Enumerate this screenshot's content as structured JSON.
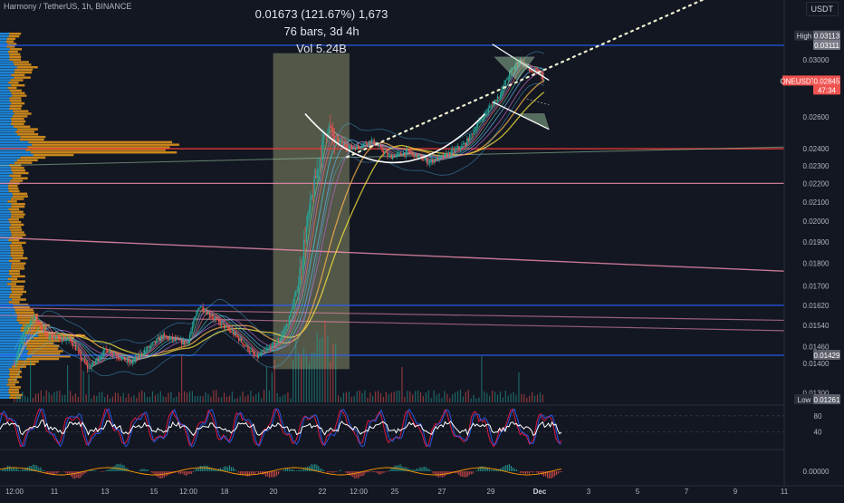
{
  "header": {
    "symbol_line": "Harmony / TetherUS, 1h, BINANCE",
    "unit": "USDT"
  },
  "measure": {
    "change": "0.01673 (121.67%) 1,673",
    "bars": "76 bars, 3d 4h",
    "volume": "Vol 5.24B"
  },
  "colors": {
    "background": "#131722",
    "up": "#26a69a",
    "down": "#ef5350",
    "volume_profile_blue": "#2196f3",
    "volume_profile_orange": "#f7a31c",
    "horizontal_red": "#e53935",
    "horizontal_blue": "#2962ff",
    "pink_line": "#f48fb1",
    "measure_box": "#c9cf8e",
    "dotted_projection": "#f0f0d0",
    "oscillator_white": "#ffffff",
    "oscillator_blue": "#2962ff",
    "oscillator_red": "#ff1744"
  },
  "chart_data": [
    {
      "type": "candlestick",
      "title": "Harmony / TetherUS, 1h, BINANCE",
      "xlabel": "",
      "ylabel": "",
      "x_ticks": [
        "12:00",
        "11",
        "13",
        "15",
        "12:00",
        "18",
        "20",
        "22",
        "12:00",
        "25",
        "27",
        "29",
        "Dec",
        "3",
        "5",
        "7",
        "9",
        "11"
      ],
      "y_ticks": [
        0.013,
        0.014,
        0.0146,
        0.0154,
        0.0162,
        0.017,
        0.018,
        0.019,
        0.02,
        0.021,
        0.022,
        0.023,
        0.024,
        0.026,
        0.03
      ],
      "y_tick_labels": [
        "0.01300",
        "0.01400",
        "0.01460",
        "0.01540",
        "0.01620",
        "0.01700",
        "0.01800",
        "0.01900",
        "0.02000",
        "0.02100",
        "0.02200",
        "0.02300",
        "0.02400",
        "0.02600",
        "0.03000"
      ],
      "ylim": [
        0.0128,
        0.0322
      ],
      "y_scale": "log",
      "price_labels": {
        "high_label": "High",
        "high_value": "0.03113",
        "high2_value": "0.03111",
        "current_symbol": "ONEUSDT",
        "current_value": "0.02845",
        "current_countdown": "47:34",
        "level_value": "0.01429",
        "low_label": "Low",
        "low_value": "0.01261"
      },
      "horizontal_levels": [
        {
          "value": 0.03111,
          "color": "blue"
        },
        {
          "value": 0.024,
          "color": "red"
        },
        {
          "value": 0.022,
          "color": "pink"
        },
        {
          "value": 0.0162,
          "color": "blue"
        },
        {
          "value": 0.01429,
          "color": "blue"
        }
      ],
      "segments": [
        {
          "from": "11 12:00",
          "to": "11 end",
          "values": [
            0.014,
            0.0155
          ]
        },
        {
          "from": "11",
          "to": "20",
          "values": [
            0.0145,
            0.0152
          ]
        },
        {
          "from": "20",
          "to": "21 12:00",
          "values": [
            0.0148,
            0.0152
          ]
        },
        {
          "from": "21 12:00",
          "to": "23",
          "values": [
            0.0152,
            0.027
          ]
        },
        {
          "from": "23",
          "to": "29",
          "values": [
            0.023,
            0.0245
          ]
        },
        {
          "from": "29",
          "to": "Dec 1",
          "values": [
            0.0245,
            0.0305
          ]
        }
      ],
      "legend": "none",
      "grid": false
    },
    {
      "type": "line",
      "title": "",
      "y_ticks": [
        40,
        80
      ],
      "y_tick_labels": [
        "40",
        "80"
      ],
      "ylim": [
        0,
        100
      ],
      "series": [
        {
          "values": []
        },
        {
          "values": []
        }
      ]
    },
    {
      "type": "bar",
      "title": "",
      "y_ticks": [
        0
      ],
      "y_tick_labels": [
        "0.00000"
      ]
    }
  ]
}
